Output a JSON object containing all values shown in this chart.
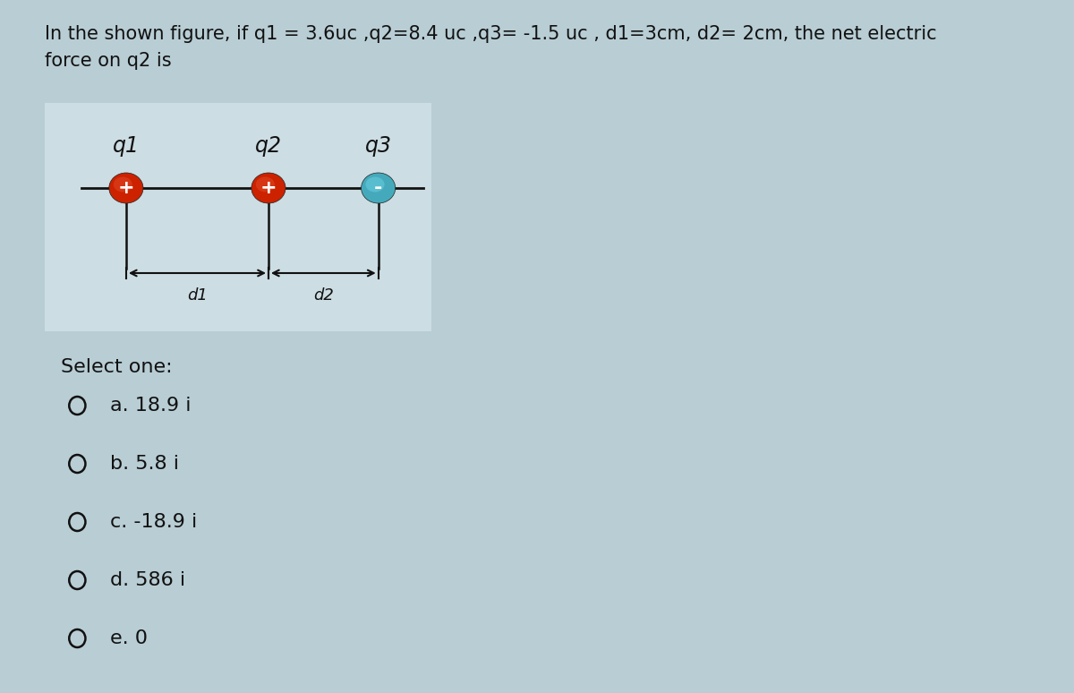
{
  "title_line1": "In the shown figure, if q1 = 3.6uc ,q2=8.4 uc ,q3= -1.5 uc , d1=3cm, d2= 2cm, the net electric",
  "title_line2": "force on q2 is",
  "page_bg": "#b8cdd4",
  "diagram_bg": "#ccdde3",
  "q1_label": "q1",
  "q2_label": "q2",
  "q3_label": "q3",
  "q1_color_outer": "#cc2200",
  "q1_color_inner": "#dd4422",
  "q2_color_outer": "#cc2200",
  "q2_color_inner": "#dd4422",
  "q3_color_outer": "#44aabb",
  "q3_color_inner": "#66ccdd",
  "q1_sign": "+",
  "q2_sign": "+",
  "q3_sign": "-",
  "d1_label": "d1",
  "d2_label": "d2",
  "select_text": "Select one:",
  "options": [
    "a. 18.9 i",
    "b. 5.8 i",
    "c. -18.9 i",
    "d. 586 i",
    "e. 0"
  ],
  "line_color": "#111111",
  "text_color": "#111111",
  "title_fontsize": 15,
  "label_fontsize": 17,
  "sign_fontsize": 16,
  "option_fontsize": 16,
  "select_fontsize": 16
}
